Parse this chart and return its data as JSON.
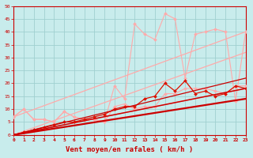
{
  "xlabel": "Vent moyen/en rafales ( km/h )",
  "xlim": [
    0,
    23
  ],
  "ylim": [
    0,
    50
  ],
  "xticks": [
    0,
    1,
    2,
    3,
    4,
    5,
    6,
    7,
    8,
    9,
    10,
    11,
    12,
    13,
    14,
    15,
    16,
    17,
    18,
    19,
    20,
    21,
    22,
    23
  ],
  "yticks": [
    0,
    5,
    10,
    15,
    20,
    25,
    30,
    35,
    40,
    45,
    50
  ],
  "background_color": "#c8ecec",
  "grid_color": "#a0d0d0",
  "lines": [
    {
      "x": [
        0,
        23
      ],
      "y": [
        7,
        40
      ],
      "color": "#ffaaaa",
      "linewidth": 0.9,
      "marker": null,
      "markersize": 0,
      "zorder": 2
    },
    {
      "x": [
        0,
        23
      ],
      "y": [
        0,
        32
      ],
      "color": "#ffaaaa",
      "linewidth": 0.9,
      "marker": null,
      "markersize": 0,
      "zorder": 2
    },
    {
      "x": [
        0,
        23
      ],
      "y": [
        0,
        18
      ],
      "color": "#ffaaaa",
      "linewidth": 0.9,
      "marker": null,
      "markersize": 0,
      "zorder": 2
    },
    {
      "x": [
        0,
        1,
        2,
        3,
        4,
        5,
        6,
        7,
        8,
        9,
        10,
        11,
        12,
        13,
        14,
        15,
        16,
        17,
        18,
        19,
        20,
        21,
        22,
        23
      ],
      "y": [
        7,
        10,
        6,
        6,
        5,
        9,
        7,
        6,
        6,
        5,
        19,
        14,
        43,
        39,
        37,
        47,
        45,
        22,
        39,
        40,
        41,
        40,
        13,
        40
      ],
      "color": "#ffaaaa",
      "linewidth": 0.8,
      "marker": "D",
      "markersize": 2.0,
      "zorder": 3
    },
    {
      "x": [
        0,
        1,
        2,
        3,
        4,
        5,
        6,
        7,
        8,
        9,
        10,
        11,
        12,
        13,
        14,
        15,
        16,
        17,
        18,
        19,
        20,
        21,
        22,
        23
      ],
      "y": [
        7,
        10,
        6,
        6,
        5,
        9,
        7,
        6,
        6,
        5,
        11,
        12,
        10,
        11,
        11,
        16,
        16,
        18,
        18,
        18,
        17,
        16,
        19,
        19
      ],
      "color": "#ffaaaa",
      "linewidth": 0.8,
      "marker": "D",
      "markersize": 2.0,
      "zorder": 3
    },
    {
      "x": [
        0,
        23
      ],
      "y": [
        0,
        14
      ],
      "color": "#cc0000",
      "linewidth": 1.6,
      "marker": null,
      "markersize": 0,
      "zorder": 5
    },
    {
      "x": [
        0,
        23
      ],
      "y": [
        0,
        18
      ],
      "color": "#cc0000",
      "linewidth": 1.1,
      "marker": null,
      "markersize": 0,
      "zorder": 4
    },
    {
      "x": [
        0,
        1,
        2,
        3,
        4,
        5,
        6,
        7,
        8,
        9,
        10,
        11,
        12,
        13,
        14,
        15,
        16,
        17,
        18,
        19,
        20,
        21,
        22,
        23
      ],
      "y": [
        0,
        1,
        2,
        3,
        4,
        5,
        5,
        6,
        7,
        8,
        10,
        11,
        11,
        14,
        15,
        20,
        17,
        21,
        16,
        17,
        15,
        16,
        19,
        18
      ],
      "color": "#dd1100",
      "linewidth": 0.9,
      "marker": "D",
      "markersize": 2.0,
      "zorder": 4
    },
    {
      "x": [
        0,
        23
      ],
      "y": [
        0,
        22
      ],
      "color": "#cc0000",
      "linewidth": 0.9,
      "marker": null,
      "markersize": 0,
      "zorder": 4
    }
  ]
}
